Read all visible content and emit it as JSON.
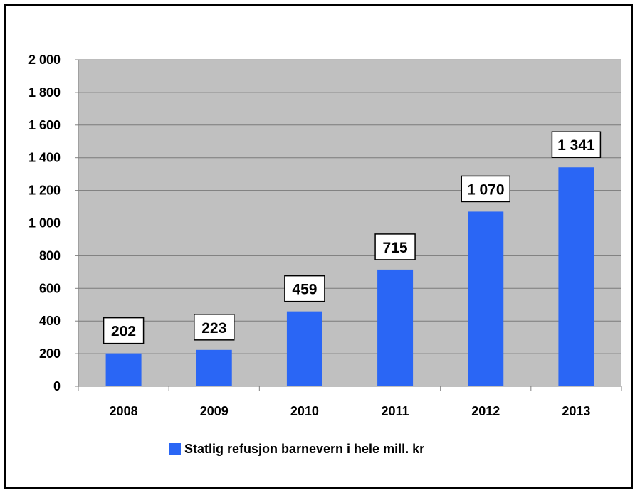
{
  "chart_data": {
    "type": "bar",
    "categories": [
      "2008",
      "2009",
      "2010",
      "2011",
      "2012",
      "2013"
    ],
    "series": [
      {
        "name": "Statlig refusjon barnevern i hele mill. kr",
        "values": [
          202,
          223,
          459,
          715,
          1070,
          1341
        ],
        "labels": [
          "202",
          "223",
          "459",
          "715",
          "1 070",
          "1 341"
        ],
        "color": "#2a66f5"
      }
    ],
    "yticks": [
      0,
      200,
      400,
      600,
      800,
      1000,
      1200,
      1400,
      1600,
      1800,
      2000
    ],
    "ytick_labels": [
      "0",
      "200",
      "400",
      "600",
      "800",
      "1 000",
      "1 200",
      "1 400",
      "1 600",
      "1 800",
      "2 000"
    ],
    "ylim": [
      0,
      2000
    ],
    "grid": true,
    "plot_background": "#c0c0c0",
    "legend_position": "bottom"
  }
}
